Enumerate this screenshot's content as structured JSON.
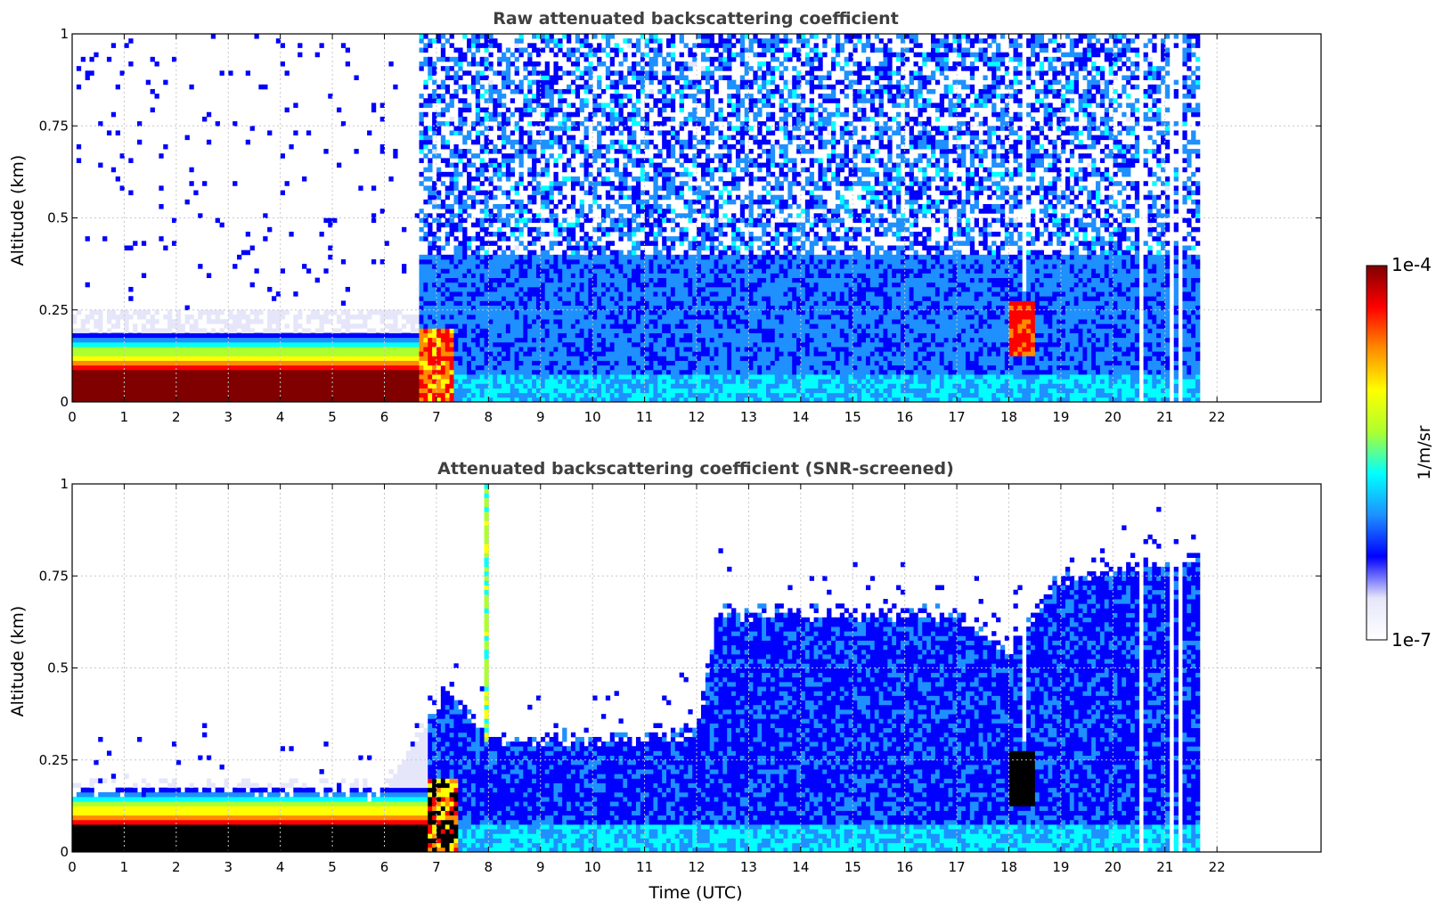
{
  "colors": {
    "colormap": [
      "#ffffff",
      "#e6e6fa",
      "#0000ff",
      "#1e90ff",
      "#00ffff",
      "#adff2f",
      "#ffff00",
      "#ff8c00",
      "#ff0000",
      "#800000"
    ],
    "saturated_low_screened": "#000000",
    "title": "#404040",
    "grid": "#c8c8c8"
  },
  "chart_data": [
    {
      "type": "heatmap",
      "title": "Raw attenuated backscattering coefficient",
      "xlabel": "",
      "ylabel": "Altitude (km)",
      "xlim": [
        0,
        24
      ],
      "ylim": [
        0,
        1
      ],
      "xticks": [
        "0",
        "1",
        "2",
        "3",
        "4",
        "5",
        "6",
        "7",
        "8",
        "9",
        "10",
        "11",
        "12",
        "13",
        "14",
        "15",
        "16",
        "17",
        "18",
        "19",
        "20",
        "21",
        "22"
      ],
      "yticks": [
        "0",
        "0.25",
        "0.5",
        "0.75",
        "1"
      ],
      "data_time_range": [
        0,
        21.67
      ],
      "grid": true,
      "features": {
        "near_surface_saturated_layer": {
          "time": [
            0,
            7.3
          ],
          "altitude": [
            0,
            0.18
          ],
          "level": "1e-4"
        },
        "low_signal_haze": {
          "time": [
            0,
            6.5
          ],
          "altitude": [
            0.18,
            0.25
          ],
          "level": "1e-7"
        },
        "noise_region": {
          "time": [
            6.9,
            21.67
          ],
          "altitude": [
            0.25,
            1.0
          ]
        },
        "signal_gap": {
          "time": 18.3,
          "altitude": [
            0.3,
            1.0
          ]
        },
        "dense_layer": {
          "time": [
            18.0,
            18.5
          ],
          "altitude": [
            0.12,
            0.27
          ],
          "level": "1e-4"
        },
        "instrument_gaps": [
          20.55,
          21.1,
          21.3
        ]
      }
    },
    {
      "type": "heatmap",
      "title": "Attenuated backscattering coefficient (SNR-screened)",
      "xlabel": "Time (UTC)",
      "ylabel": "Altitude (km)",
      "xlim": [
        0,
        24
      ],
      "ylim": [
        0,
        1
      ],
      "xticks": [
        "0",
        "1",
        "2",
        "3",
        "4",
        "5",
        "6",
        "7",
        "8",
        "9",
        "10",
        "11",
        "12",
        "13",
        "14",
        "15",
        "16",
        "17",
        "18",
        "19",
        "20",
        "21",
        "22"
      ],
      "yticks": [
        "0",
        "0.25",
        "0.5",
        "0.75",
        "1"
      ],
      "data_time_range": [
        0,
        21.67
      ],
      "grid": true,
      "features": {
        "boundary_layer_top": [
          {
            "time": 0,
            "altitude": 0.18
          },
          {
            "time": 6,
            "altitude": 0.17
          },
          {
            "time": 7.2,
            "altitude": 0.45
          },
          {
            "time": 8,
            "altitude": 0.3
          },
          {
            "time": 12,
            "altitude": 0.32
          },
          {
            "time": 12.4,
            "altitude": 0.65
          },
          {
            "time": 17,
            "altitude": 0.65
          },
          {
            "time": 18,
            "altitude": 0.55
          },
          {
            "time": 19,
            "altitude": 0.75
          },
          {
            "time": 21.67,
            "altitude": 0.8
          }
        ],
        "signal_gap": {
          "time": 18.3,
          "altitude": [
            0.3,
            1.0
          ]
        },
        "thin_plume": {
          "time": 7.95,
          "altitude": [
            0.3,
            1.0
          ]
        },
        "instrument_gaps": [
          20.55,
          21.1,
          21.3
        ]
      }
    }
  ],
  "colorbar": {
    "label": "1/m/sr",
    "max_label": "1e-4",
    "min_label": "1e-7",
    "scale": "log",
    "range": [
      1e-07,
      0.0001
    ]
  }
}
